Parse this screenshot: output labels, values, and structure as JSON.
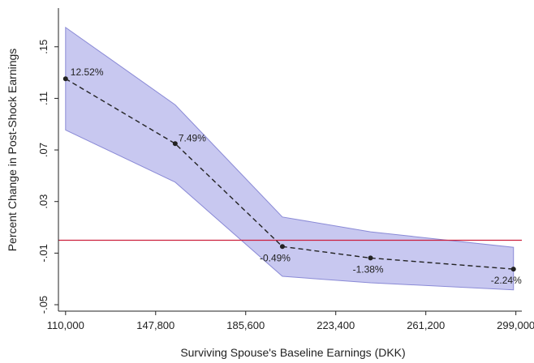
{
  "chart_data": {
    "type": "line",
    "xlabel": "Surviving Spouse's Baseline Earnings (DKK)",
    "ylabel": "Percent Change in Post-Shock Earnings",
    "x_ticks": [
      110000,
      147800,
      185600,
      223400,
      261200,
      299000
    ],
    "x_tick_labels": [
      "110,000",
      "147,800",
      "185,600",
      "223,400",
      "261,200",
      "299,000"
    ],
    "y_ticks": [
      -0.05,
      -0.01,
      0.03,
      0.07,
      0.11,
      0.15
    ],
    "y_tick_labels": [
      "-.05",
      "-.01",
      ".03",
      ".07",
      ".11",
      ".15"
    ],
    "xlim": [
      107000,
      301500
    ],
    "ylim": [
      -0.055,
      0.18
    ],
    "reference_line_y": 0.0,
    "series": [
      {
        "x": [
          110000,
          156000,
          201000,
          238000,
          298000
        ],
        "values": [
          0.1252,
          0.0749,
          -0.0049,
          -0.0138,
          -0.0224
        ],
        "point_labels": [
          "12.52%",
          "7.49%",
          "-0.49%",
          "-1.38%",
          "-2.24%"
        ]
      }
    ],
    "confidence_band": {
      "x": [
        110000,
        156000,
        201000,
        238000,
        298000
      ],
      "upper": [
        0.165,
        0.105,
        0.018,
        0.0065,
        -0.0055
      ],
      "lower": [
        0.0855,
        0.045,
        -0.028,
        -0.033,
        -0.0385
      ]
    },
    "colors": {
      "band_fill": "#c8c8f0",
      "band_edge": "#8a8ad6",
      "line": "#222222",
      "reference_line": "#cc1f3c"
    },
    "grid": false,
    "legend": "none"
  }
}
